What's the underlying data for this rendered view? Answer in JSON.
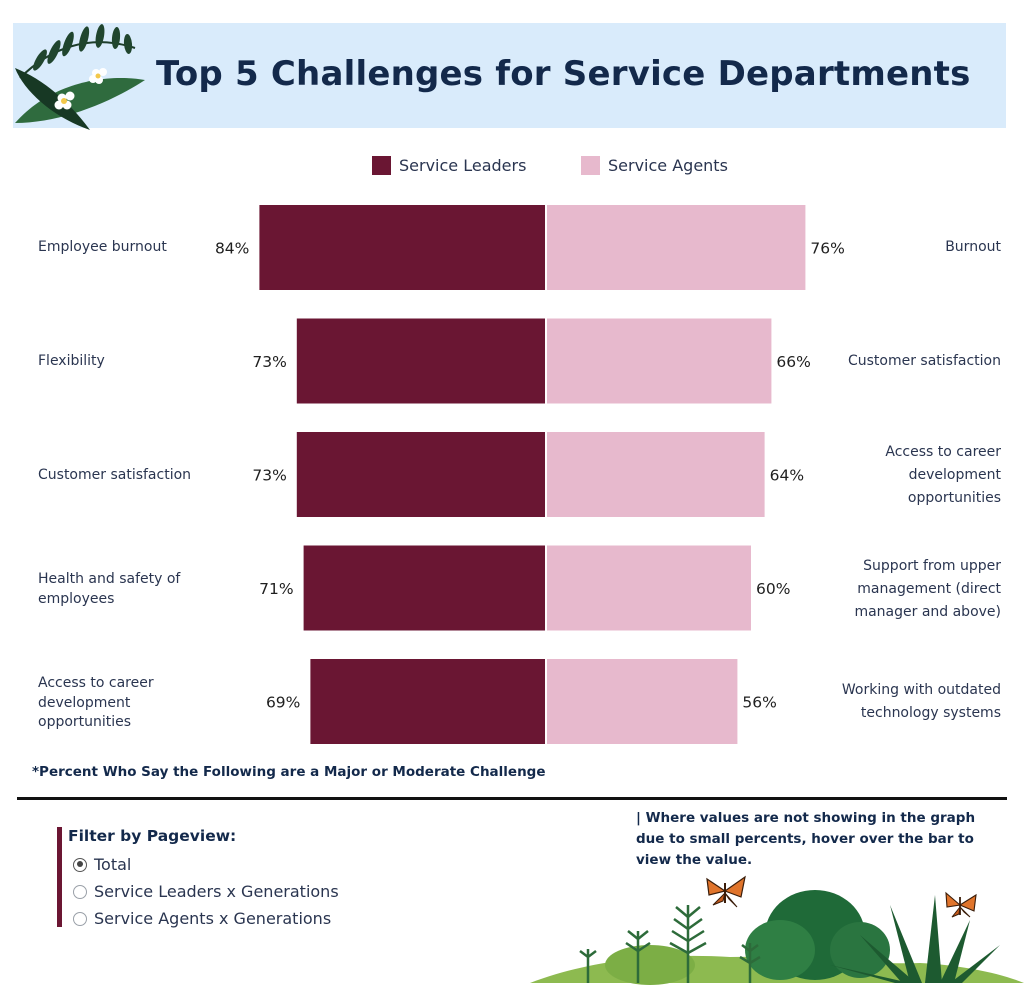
{
  "title": "Top 5 Challenges for Service Departments",
  "colors": {
    "leaders": "#6a1633",
    "agents": "#e7b9cd",
    "header_bg": "#d9ebfb",
    "accent": "#6b1633"
  },
  "legend": {
    "leaders": "Service Leaders",
    "agents": "Service Agents"
  },
  "chart_data": {
    "type": "bar",
    "orientation": "diverging-horizontal",
    "series": [
      {
        "name": "Service Leaders",
        "categories": [
          "Employee burnout",
          "Flexibility",
          "Customer satisfaction",
          "Health and safety of employees",
          "Access to career development opportunities"
        ],
        "values": [
          84,
          73,
          73,
          71,
          69
        ],
        "labels": [
          "84%",
          "73%",
          "73%",
          "71%",
          "69%"
        ]
      },
      {
        "name": "Service Agents",
        "categories": [
          "Burnout",
          "Customer satisfaction",
          "Access to career development opportunities",
          "Support from upper management (direct manager and above)",
          "Working with outdated technology systems"
        ],
        "values": [
          76,
          66,
          64,
          60,
          56
        ],
        "labels": [
          "76%",
          "66%",
          "64%",
          "60%",
          "56%"
        ]
      }
    ],
    "xlim": [
      0,
      100
    ],
    "legend_position": "top"
  },
  "footnote": "*Percent Who Say the Following are a Major or Moderate Challenge",
  "filter": {
    "title": "Filter by Pageview:",
    "options": [
      "Total",
      "Service Leaders x Generations",
      "Service Agents x Generations"
    ],
    "selected": "Total"
  },
  "note": "| Where values are not showing in the graph due to small percents, hover over the bar to view the value.",
  "icons": [
    "leaf-decoration-icon",
    "plumeria-flower-icon",
    "plants-decoration-icon",
    "butterfly-icon"
  ]
}
